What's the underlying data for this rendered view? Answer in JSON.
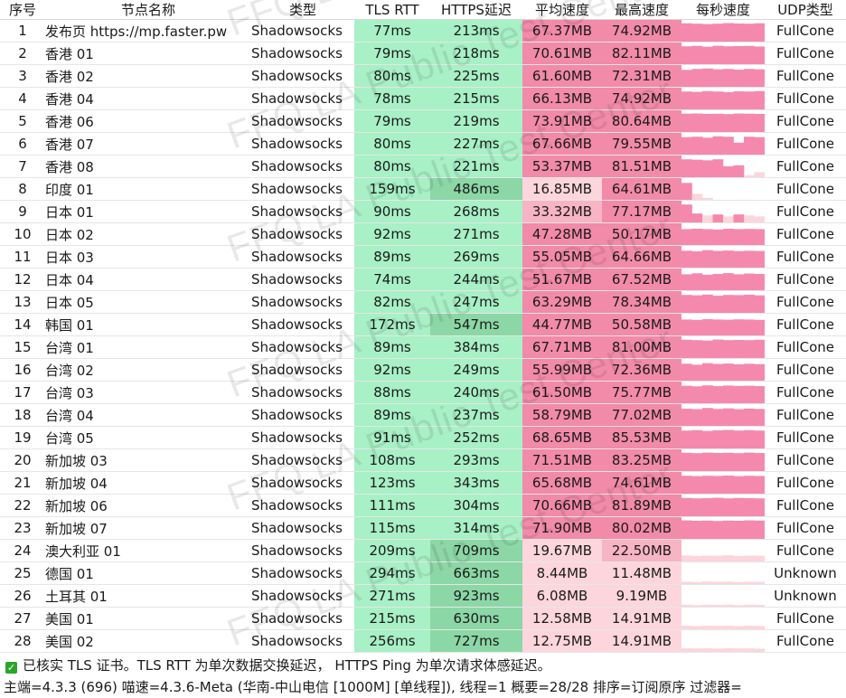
{
  "table": {
    "headers": {
      "idx": "序号",
      "name": "节点名称",
      "type": "类型",
      "tls": "TLS RTT",
      "https": "HTTPS延迟",
      "avg": "平均速度",
      "max": "最高速度",
      "persec": "每秒速度",
      "udp": "UDP类型"
    },
    "rows": [
      {
        "idx": "1",
        "name": "发布页 https://mp.faster.pw",
        "type": "Shadowsocks",
        "tls": "77ms",
        "https": "213ms",
        "avg": "67.37MB",
        "max": "74.92MB",
        "udp": "FullCone",
        "spark": [
          0.92,
          0.9,
          0.88,
          0.9,
          0.93,
          0.91,
          0.9,
          0.92
        ]
      },
      {
        "idx": "2",
        "name": "香港 01",
        "type": "Shadowsocks",
        "tls": "79ms",
        "https": "218ms",
        "avg": "70.61MB",
        "max": "82.11MB",
        "udp": "FullCone",
        "spark": [
          0.9,
          0.92,
          0.88,
          0.93,
          0.9,
          0.91,
          0.92,
          0.89
        ]
      },
      {
        "idx": "3",
        "name": "香港 02",
        "type": "Shadowsocks",
        "tls": "80ms",
        "https": "225ms",
        "avg": "61.60MB",
        "max": "72.31MB",
        "udp": "FullCone",
        "spark": [
          0.85,
          0.9,
          0.92,
          0.88,
          0.9,
          0.86,
          0.9,
          0.88
        ]
      },
      {
        "idx": "4",
        "name": "香港 04",
        "type": "Shadowsocks",
        "tls": "78ms",
        "https": "215ms",
        "avg": "66.13MB",
        "max": "74.92MB",
        "udp": "FullCone",
        "spark": [
          0.9,
          0.88,
          0.92,
          0.9,
          0.87,
          0.91,
          0.9,
          0.92
        ]
      },
      {
        "idx": "5",
        "name": "香港 06",
        "type": "Shadowsocks",
        "tls": "79ms",
        "https": "219ms",
        "avg": "73.91MB",
        "max": "80.64MB",
        "udp": "FullCone",
        "spark": [
          0.92,
          0.93,
          0.91,
          0.92,
          0.9,
          0.93,
          0.92,
          0.91
        ]
      },
      {
        "idx": "6",
        "name": "香港 07",
        "type": "Shadowsocks",
        "tls": "80ms",
        "https": "227ms",
        "avg": "67.66MB",
        "max": "79.55MB",
        "udp": "FullCone",
        "spark": [
          0.88,
          0.9,
          0.85,
          0.92,
          0.9,
          0.6,
          0.9,
          0.88
        ]
      },
      {
        "idx": "7",
        "name": "香港 08",
        "type": "Shadowsocks",
        "tls": "80ms",
        "https": "221ms",
        "avg": "53.37MB",
        "max": "81.51MB",
        "udp": "FullCone",
        "spark": [
          0.9,
          0.88,
          0.85,
          0.9,
          0.55,
          0.6,
          0.1,
          0.25
        ]
      },
      {
        "idx": "8",
        "name": "印度 01",
        "type": "Shadowsocks",
        "tls": "159ms",
        "https": "486ms",
        "avg": "16.85MB",
        "max": "64.61MB",
        "udp": "FullCone",
        "spark": [
          0.85,
          0.3,
          0.1,
          0.0,
          0.0,
          0.0,
          0.0,
          0.0
        ]
      },
      {
        "idx": "9",
        "name": "日本 01",
        "type": "Shadowsocks",
        "tls": "90ms",
        "https": "268ms",
        "avg": "33.32MB",
        "max": "77.17MB",
        "udp": "FullCone",
        "spark": [
          0.9,
          0.45,
          0.35,
          0.4,
          0.3,
          0.4,
          0.35,
          0.3
        ]
      },
      {
        "idx": "10",
        "name": "日本 02",
        "type": "Shadowsocks",
        "tls": "92ms",
        "https": "271ms",
        "avg": "47.28MB",
        "max": "50.17MB",
        "udp": "FullCone",
        "spark": [
          0.8,
          0.82,
          0.8,
          0.78,
          0.82,
          0.8,
          0.81,
          0.8
        ]
      },
      {
        "idx": "11",
        "name": "日本 03",
        "type": "Shadowsocks",
        "tls": "89ms",
        "https": "269ms",
        "avg": "55.05MB",
        "max": "64.66MB",
        "udp": "FullCone",
        "spark": [
          0.85,
          0.82,
          0.88,
          0.84,
          0.86,
          0.83,
          0.85,
          0.84
        ]
      },
      {
        "idx": "12",
        "name": "日本 04",
        "type": "Shadowsocks",
        "tls": "74ms",
        "https": "244ms",
        "avg": "51.67MB",
        "max": "67.52MB",
        "udp": "FullCone",
        "spark": [
          0.8,
          0.85,
          0.78,
          0.82,
          0.86,
          0.8,
          0.84,
          0.82
        ]
      },
      {
        "idx": "13",
        "name": "日本 05",
        "type": "Shadowsocks",
        "tls": "82ms",
        "https": "247ms",
        "avg": "63.29MB",
        "max": "78.34MB",
        "udp": "FullCone",
        "spark": [
          0.9,
          0.88,
          0.92,
          0.86,
          0.9,
          0.89,
          0.91,
          0.88
        ]
      },
      {
        "idx": "14",
        "name": "韩国 01",
        "type": "Shadowsocks",
        "tls": "172ms",
        "https": "547ms",
        "avg": "44.77MB",
        "max": "50.58MB",
        "udp": "FullCone",
        "spark": [
          0.8,
          0.78,
          0.82,
          0.8,
          0.79,
          0.81,
          0.8,
          0.78
        ]
      },
      {
        "idx": "15",
        "name": "台湾 01",
        "type": "Shadowsocks",
        "tls": "89ms",
        "https": "384ms",
        "avg": "67.71MB",
        "max": "81.00MB",
        "udp": "FullCone",
        "spark": [
          0.92,
          0.9,
          0.88,
          0.93,
          0.9,
          0.91,
          0.9,
          0.92
        ]
      },
      {
        "idx": "16",
        "name": "台湾 02",
        "type": "Shadowsocks",
        "tls": "92ms",
        "https": "249ms",
        "avg": "55.99MB",
        "max": "72.36MB",
        "udp": "FullCone",
        "spark": [
          0.85,
          0.8,
          0.88,
          0.84,
          0.86,
          0.82,
          0.85,
          0.83
        ]
      },
      {
        "idx": "17",
        "name": "台湾 03",
        "type": "Shadowsocks",
        "tls": "88ms",
        "https": "240ms",
        "avg": "61.50MB",
        "max": "75.77MB",
        "udp": "FullCone",
        "spark": [
          0.88,
          0.85,
          0.9,
          0.86,
          0.89,
          0.87,
          0.88,
          0.86
        ]
      },
      {
        "idx": "18",
        "name": "台湾 04",
        "type": "Shadowsocks",
        "tls": "89ms",
        "https": "237ms",
        "avg": "58.79MB",
        "max": "77.02MB",
        "udp": "FullCone",
        "spark": [
          0.86,
          0.84,
          0.9,
          0.85,
          0.88,
          0.84,
          0.87,
          0.85
        ]
      },
      {
        "idx": "19",
        "name": "台湾 05",
        "type": "Shadowsocks",
        "tls": "91ms",
        "https": "252ms",
        "avg": "68.65MB",
        "max": "85.53MB",
        "udp": "FullCone",
        "spark": [
          0.9,
          0.92,
          0.88,
          0.91,
          0.93,
          0.9,
          0.92,
          0.9
        ]
      },
      {
        "idx": "20",
        "name": "新加坡 03",
        "type": "Shadowsocks",
        "tls": "108ms",
        "https": "293ms",
        "avg": "71.51MB",
        "max": "83.25MB",
        "udp": "FullCone",
        "spark": [
          0.92,
          0.9,
          0.93,
          0.91,
          0.92,
          0.9,
          0.93,
          0.91
        ]
      },
      {
        "idx": "21",
        "name": "新加坡 04",
        "type": "Shadowsocks",
        "tls": "123ms",
        "https": "343ms",
        "avg": "65.68MB",
        "max": "74.61MB",
        "udp": "FullCone",
        "spark": [
          0.9,
          0.88,
          0.9,
          0.89,
          0.91,
          0.88,
          0.9,
          0.89
        ]
      },
      {
        "idx": "22",
        "name": "新加坡 06",
        "type": "Shadowsocks",
        "tls": "111ms",
        "https": "304ms",
        "avg": "70.66MB",
        "max": "81.89MB",
        "udp": "FullCone",
        "spark": [
          0.92,
          0.9,
          0.91,
          0.93,
          0.9,
          0.92,
          0.91,
          0.9
        ]
      },
      {
        "idx": "23",
        "name": "新加坡 07",
        "type": "Shadowsocks",
        "tls": "115ms",
        "https": "314ms",
        "avg": "71.90MB",
        "max": "80.02MB",
        "udp": "FullCone",
        "spark": [
          0.93,
          0.91,
          0.92,
          0.9,
          0.92,
          0.91,
          0.93,
          0.92
        ]
      },
      {
        "idx": "24",
        "name": "澳大利亚 01",
        "type": "Shadowsocks",
        "tls": "209ms",
        "https": "709ms",
        "avg": "19.67MB",
        "max": "22.50MB",
        "udp": "FullCone",
        "spark": [
          0.3,
          0.28,
          0.3,
          0.29,
          0.31,
          0.28,
          0.3,
          0.29
        ]
      },
      {
        "idx": "25",
        "name": "德国 01",
        "type": "Shadowsocks",
        "tls": "294ms",
        "https": "663ms",
        "avg": "8.44MB",
        "max": "11.48MB",
        "udp": "Unknown",
        "spark": [
          0.12,
          0.1,
          0.13,
          0.11,
          0.12,
          0.1,
          0.12,
          0.11
        ]
      },
      {
        "idx": "26",
        "name": "土耳其 01",
        "type": "Shadowsocks",
        "tls": "271ms",
        "https": "923ms",
        "avg": "6.08MB",
        "max": "9.19MB",
        "udp": "Unknown",
        "spark": [
          0.1,
          0.08,
          0.1,
          0.09,
          0.1,
          0.08,
          0.1,
          0.09
        ]
      },
      {
        "idx": "27",
        "name": "美国 01",
        "type": "Shadowsocks",
        "tls": "215ms",
        "https": "630ms",
        "avg": "12.58MB",
        "max": "14.91MB",
        "udp": "FullCone",
        "spark": [
          0.18,
          0.16,
          0.18,
          0.17,
          0.18,
          0.16,
          0.18,
          0.17
        ]
      },
      {
        "idx": "28",
        "name": "美国 02",
        "type": "Shadowsocks",
        "tls": "256ms",
        "https": "727ms",
        "avg": "12.75MB",
        "max": "14.91MB",
        "udp": "FullCone",
        "spark": [
          0.18,
          0.17,
          0.18,
          0.16,
          0.18,
          0.17,
          0.18,
          0.16
        ]
      }
    ]
  },
  "watermark": "FFQ.LA Public Test Center",
  "footer": {
    "note": "已核实 TLS 证书。TLS RTT 为单次数据交换延迟， HTTPS Ping 为单次请求体感延迟。",
    "status": "主端=4.3.3 (696) 喵速=4.3.6-Meta (华南-中山电信 [1000M] [单线程]), 线程=1 概要=28/28 排序=订阅原序 过滤器="
  },
  "colors": {
    "tls_cell": "#a8f0c6",
    "https_light": "#a8f0c6",
    "https_dark": "#8cd7a6",
    "speed_fast": "#f28aaa",
    "speed_mid": "#f7b4c4",
    "speed_slow": "#fcd6dc",
    "spark_fill": "#f589ad",
    "check_green": "#2aa52a"
  }
}
